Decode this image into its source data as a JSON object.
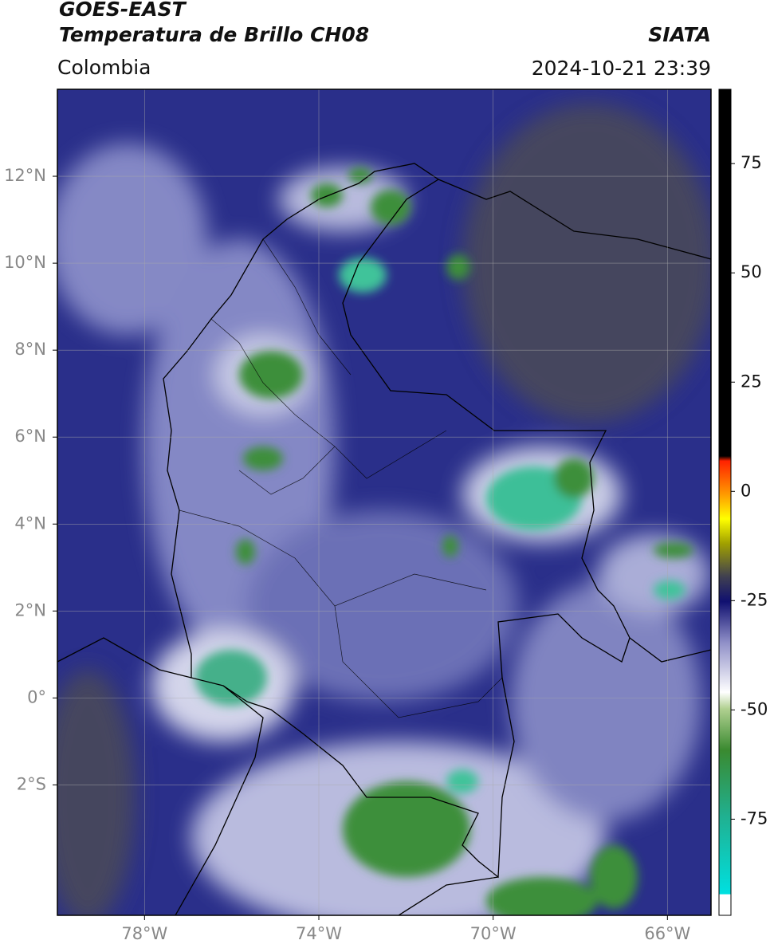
{
  "header": {
    "satellite": "GOES-EAST",
    "product": "Temperatura de Brillo CH08",
    "region": "Colombia",
    "source": "SIATA",
    "datetime": "2024-10-21 23:39"
  },
  "map": {
    "xlim": [
      -80,
      -65
    ],
    "ylim": [
      -5,
      14
    ],
    "xticks": [
      {
        "value": -78,
        "label": "78°W"
      },
      {
        "value": -74,
        "label": "74°W"
      },
      {
        "value": -70,
        "label": "70°W"
      },
      {
        "value": -66,
        "label": "66°W"
      }
    ],
    "yticks": [
      {
        "value": 12,
        "label": "12°N"
      },
      {
        "value": 10,
        "label": "10°N"
      },
      {
        "value": 8,
        "label": "8°N"
      },
      {
        "value": 6,
        "label": "6°N"
      },
      {
        "value": 4,
        "label": "4°N"
      },
      {
        "value": 2,
        "label": "2°N"
      },
      {
        "value": 0,
        "label": "0°"
      },
      {
        "value": -2,
        "label": "2°S"
      }
    ],
    "grid": true
  },
  "colorbar": {
    "lim": [
      -97,
      92
    ],
    "ticks": [
      75,
      50,
      25,
      0,
      -25,
      -50,
      -75
    ]
  }
}
